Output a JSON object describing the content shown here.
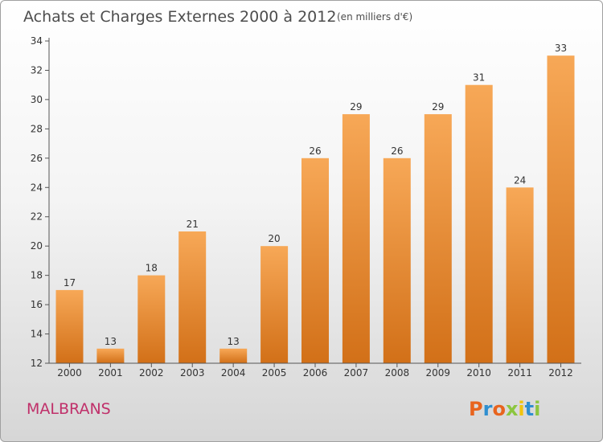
{
  "header": {
    "title": "Achats et Charges Externes 2000 à 2012",
    "unit": "(en milliers d'€)"
  },
  "footer": {
    "commune": "MALBRANS",
    "logo": "Proxiti"
  },
  "colors": {
    "bar_top": "#f7a857",
    "bar_bottom": "#d27018",
    "commune": "#c0306a",
    "logo_letters": [
      "#e8641e",
      "#2f8fd0",
      "#e8641e",
      "#8cc63f",
      "#f1c40f",
      "#2f8fd0",
      "#8cc63f"
    ]
  },
  "chart_data": {
    "type": "bar",
    "categories": [
      "2000",
      "2001",
      "2002",
      "2003",
      "2004",
      "2005",
      "2006",
      "2007",
      "2008",
      "2009",
      "2010",
      "2011",
      "2012"
    ],
    "values": [
      17,
      13,
      18,
      21,
      13,
      20,
      26,
      29,
      26,
      29,
      31,
      24,
      33
    ],
    "ylim": [
      12,
      34
    ],
    "yticks": [
      12,
      14,
      16,
      18,
      20,
      22,
      24,
      26,
      28,
      30,
      32,
      34
    ],
    "grid": false
  }
}
